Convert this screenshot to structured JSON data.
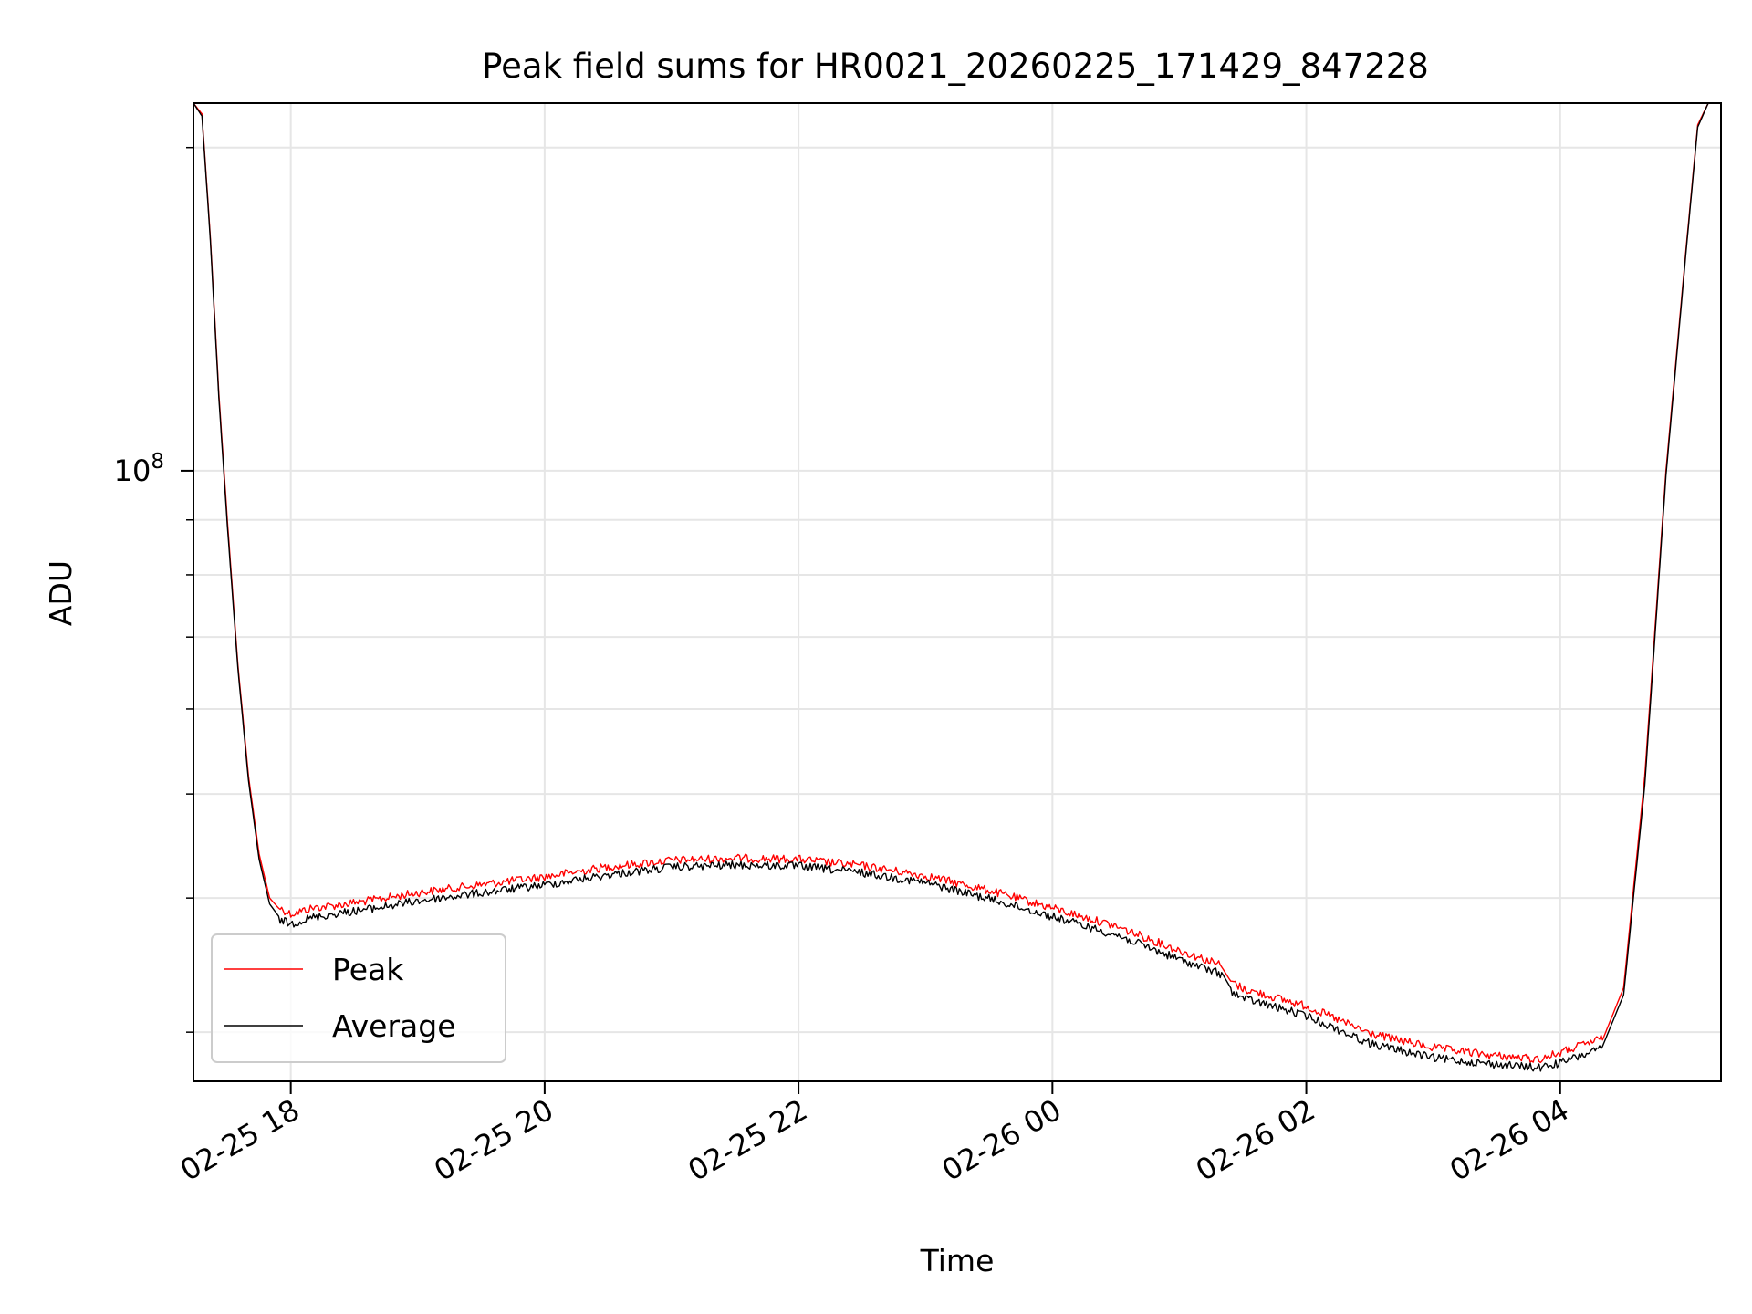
{
  "chart_data": {
    "type": "line",
    "title": "Peak field sums for HR0021_20260225_171429_847228",
    "xlabel": "Time",
    "ylabel": "ADU",
    "y_scale": "log",
    "y_major_tick": {
      "base": "10",
      "exponent": "8",
      "value": 100000000
    },
    "ylim": [
      27000000,
      220000000
    ],
    "xlim": [
      "2026-02-25 17:14",
      "2026-02-26 05:16"
    ],
    "x_ticks": [
      {
        "time": "2026-02-25 18:00",
        "label": "02-25 18"
      },
      {
        "time": "2026-02-25 20:00",
        "label": "02-25 20"
      },
      {
        "time": "2026-02-25 22:00",
        "label": "02-25 22"
      },
      {
        "time": "2026-02-26 00:00",
        "label": "02-26 00"
      },
      {
        "time": "2026-02-26 02:00",
        "label": "02-26 02"
      },
      {
        "time": "2026-02-26 04:00",
        "label": "02-26 04"
      }
    ],
    "grid": true,
    "legend_position": "lower-left",
    "series": [
      {
        "name": "Peak",
        "color": "#ff0000",
        "x": [
          "2026-02-25 17:14",
          "2026-02-25 17:18",
          "2026-02-25 17:22",
          "2026-02-25 17:26",
          "2026-02-25 17:30",
          "2026-02-25 17:35",
          "2026-02-25 17:40",
          "2026-02-25 17:45",
          "2026-02-25 17:50",
          "2026-02-25 17:55",
          "2026-02-25 18:00",
          "2026-02-25 18:10",
          "2026-02-25 18:20",
          "2026-02-25 18:40",
          "2026-02-25 19:00",
          "2026-02-25 19:30",
          "2026-02-25 20:00",
          "2026-02-25 20:30",
          "2026-02-25 21:00",
          "2026-02-25 21:30",
          "2026-02-25 22:00",
          "2026-02-25 22:30",
          "2026-02-25 23:00",
          "2026-02-25 23:30",
          "2026-02-26 00:00",
          "2026-02-26 00:30",
          "2026-02-26 01:00",
          "2026-02-26 01:20",
          "2026-02-26 01:25",
          "2026-02-26 01:30",
          "2026-02-26 02:00",
          "2026-02-26 02:30",
          "2026-02-26 03:00",
          "2026-02-26 03:30",
          "2026-02-26 03:50",
          "2026-02-26 04:00",
          "2026-02-26 04:20",
          "2026-02-26 04:30",
          "2026-02-26 04:40",
          "2026-02-26 04:50",
          "2026-02-26 05:00",
          "2026-02-26 05:05",
          "2026-02-26 05:10",
          "2026-02-26 05:16"
        ],
        "values": [
          220000000,
          215000000,
          165000000,
          118000000,
          90000000,
          66000000,
          52000000,
          44000000,
          40000000,
          39000000,
          38500000,
          39000000,
          39200000,
          39700000,
          40300000,
          41000000,
          41700000,
          42600000,
          43200000,
          43400000,
          43300000,
          42700000,
          41800000,
          40500000,
          39000000,
          37500000,
          35600000,
          34500000,
          33300000,
          32800000,
          31600000,
          29800000,
          28900000,
          28400000,
          28200000,
          28600000,
          29500000,
          33000000,
          52000000,
          100000000,
          165000000,
          210000000,
          220000000,
          220000000
        ]
      },
      {
        "name": "Average",
        "color": "#000000",
        "x": [
          "2026-02-25 17:14",
          "2026-02-25 17:18",
          "2026-02-25 17:22",
          "2026-02-25 17:26",
          "2026-02-25 17:30",
          "2026-02-25 17:35",
          "2026-02-25 17:40",
          "2026-02-25 17:45",
          "2026-02-25 17:50",
          "2026-02-25 17:55",
          "2026-02-25 18:00",
          "2026-02-25 18:10",
          "2026-02-25 18:20",
          "2026-02-25 18:40",
          "2026-02-25 19:00",
          "2026-02-25 19:30",
          "2026-02-25 20:00",
          "2026-02-25 20:30",
          "2026-02-25 21:00",
          "2026-02-25 21:30",
          "2026-02-25 22:00",
          "2026-02-25 22:30",
          "2026-02-25 23:00",
          "2026-02-25 23:30",
          "2026-02-26 00:00",
          "2026-02-26 00:30",
          "2026-02-26 01:00",
          "2026-02-26 01:20",
          "2026-02-26 01:25",
          "2026-02-26 01:30",
          "2026-02-26 02:00",
          "2026-02-26 02:30",
          "2026-02-26 03:00",
          "2026-02-26 03:30",
          "2026-02-26 03:50",
          "2026-02-26 04:00",
          "2026-02-26 04:20",
          "2026-02-26 04:30",
          "2026-02-26 04:40",
          "2026-02-26 04:50",
          "2026-02-26 05:00",
          "2026-02-26 05:05",
          "2026-02-26 05:10",
          "2026-02-26 05:16"
        ],
        "values": [
          220000000,
          214000000,
          164000000,
          117000000,
          89000000,
          65500000,
          51500000,
          43500000,
          39500000,
          38300000,
          38000000,
          38500000,
          38800000,
          39300000,
          39900000,
          40600000,
          41300000,
          42200000,
          42900000,
          43100000,
          43000000,
          42400000,
          41500000,
          40100000,
          38600000,
          37100000,
          35200000,
          34100000,
          32800000,
          32400000,
          31200000,
          29400000,
          28500000,
          28100000,
          27900000,
          28200000,
          29100000,
          32500000,
          51000000,
          99000000,
          164000000,
          209000000,
          220000000,
          220000000
        ]
      }
    ]
  }
}
